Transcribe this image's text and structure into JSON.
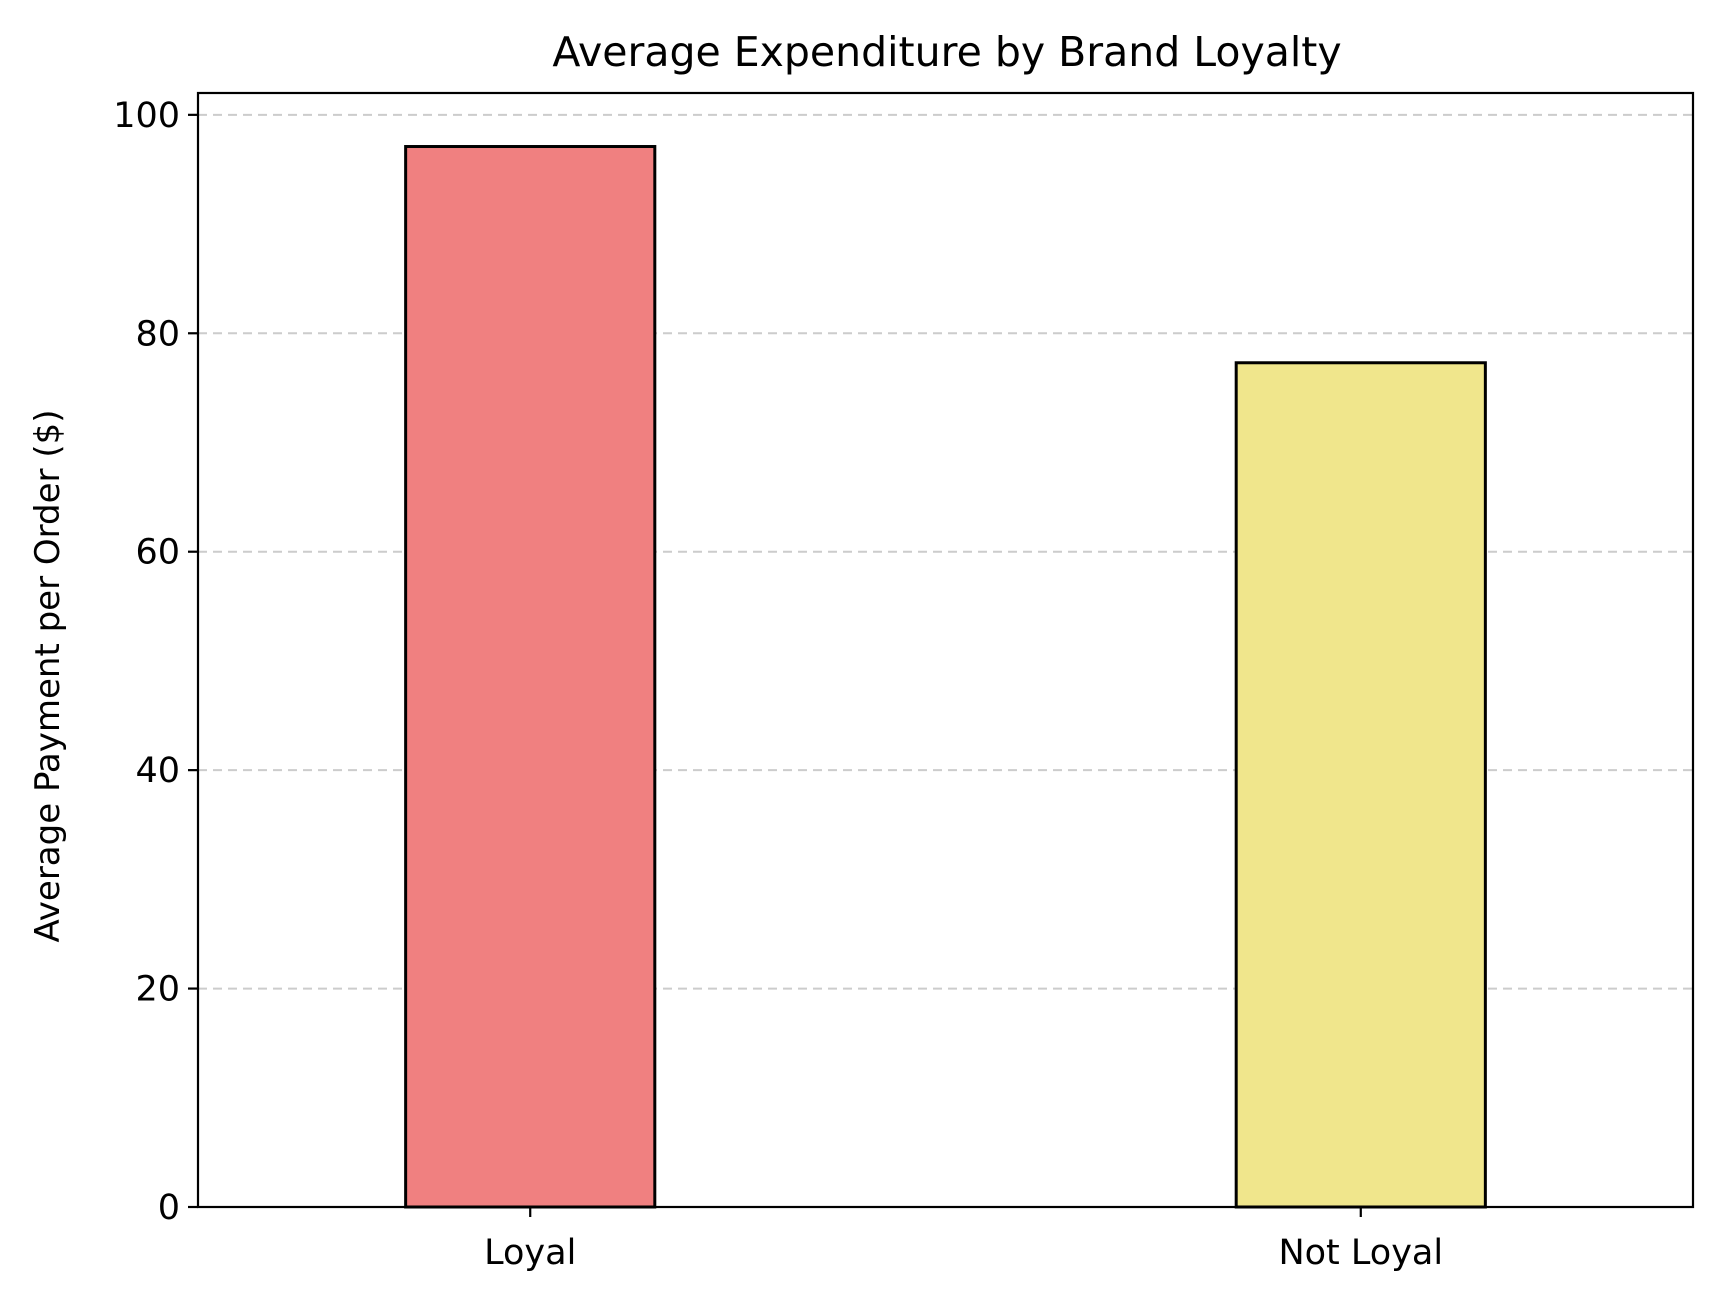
{
  "chart_data": {
    "type": "bar",
    "title": "Average Expenditure by Brand Loyalty",
    "xlabel": "",
    "ylabel": "Average Payment per Order ($)",
    "categories": [
      "Loyal",
      "Not Loyal"
    ],
    "values": [
      97.1,
      77.3
    ],
    "bar_colors": [
      "#f08080",
      "#f0e68c"
    ],
    "edge_color": "#000000",
    "grid_color": "#cccccc",
    "ylim": [
      0,
      102
    ],
    "yticks": [
      0,
      20,
      40,
      60,
      80,
      100
    ],
    "grid": "y-axis dashed",
    "legend": "none"
  }
}
